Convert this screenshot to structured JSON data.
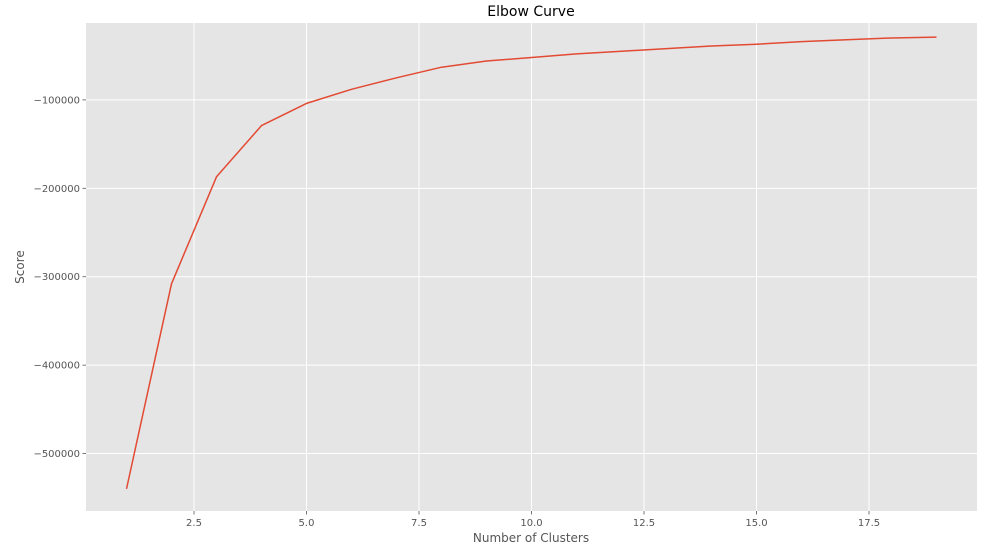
{
  "chart_data": {
    "type": "line",
    "title": "Elbow Curve",
    "xlabel": "Number of Clusters",
    "ylabel": "Score",
    "xlim": [
      0.1,
      19.9
    ],
    "ylim": [
      -565000,
      -13000
    ],
    "grid": true,
    "x_ticks": [
      2.5,
      5.0,
      7.5,
      10.0,
      12.5,
      15.0,
      17.5
    ],
    "x_tick_labels": [
      "2.5",
      "5.0",
      "7.5",
      "10.0",
      "12.5",
      "15.0",
      "17.5"
    ],
    "y_ticks": [
      -100000,
      -200000,
      -300000,
      -400000,
      -500000
    ],
    "y_tick_labels": [
      "−100000",
      "−200000",
      "−300000",
      "−400000",
      "−500000"
    ],
    "series": [
      {
        "color": "#e24a33",
        "x": [
          1,
          2,
          3,
          4,
          5,
          6,
          7,
          8,
          9,
          10,
          11,
          12,
          13,
          14,
          15,
          16,
          17,
          18,
          19
        ],
        "y": [
          -540000,
          -308000,
          -187000,
          -129000,
          -104000,
          -88000,
          -75000,
          -63000,
          -56000,
          -52000,
          -48000,
          -45000,
          -42000,
          -39000,
          -37000,
          -34000,
          -32000,
          -30000,
          -29000
        ]
      }
    ]
  },
  "colors": {
    "plot_background": "#e5e5e5",
    "grid": "#ffffff",
    "line": "#e24a33"
  }
}
